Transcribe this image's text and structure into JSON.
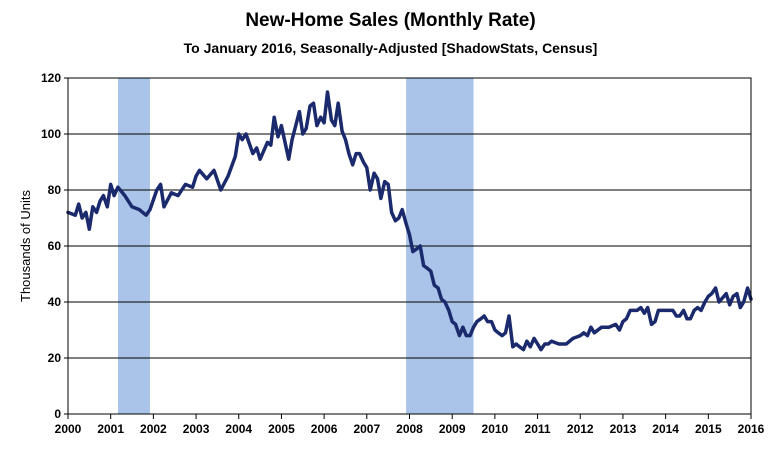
{
  "chart_data": {
    "type": "line",
    "title": "New-Home Sales (Monthly Rate)",
    "subtitle": "To January 2016, Seasonally-Adjusted [ShadowStats, Census]",
    "ylabel": "Thousands of Units",
    "xlabel": "",
    "ylim": [
      0,
      120
    ],
    "xlim": [
      2000,
      2016
    ],
    "yticks": [
      "0",
      "20",
      "40",
      "60",
      "80",
      "100",
      "120"
    ],
    "xticks": [
      "2000",
      "2001",
      "2002",
      "2003",
      "2004",
      "2005",
      "2006",
      "2007",
      "2008",
      "2009",
      "2010",
      "2011",
      "2012",
      "2013",
      "2014",
      "2015",
      "2016"
    ],
    "grid": true,
    "line_color": "#1a2a6c",
    "recession_color": "#a9c4e8",
    "recessions": [
      [
        2001.17,
        2001.92
      ],
      [
        2007.92,
        2009.5
      ]
    ],
    "series": [
      {
        "points": [
          [
            2000.0,
            72
          ],
          [
            2000.17,
            71
          ],
          [
            2000.25,
            75
          ],
          [
            2000.33,
            70
          ],
          [
            2000.42,
            72
          ],
          [
            2000.5,
            66
          ],
          [
            2000.58,
            74
          ],
          [
            2000.67,
            72
          ],
          [
            2000.75,
            76
          ],
          [
            2000.83,
            78
          ],
          [
            2000.92,
            74
          ],
          [
            2001.0,
            82
          ],
          [
            2001.08,
            78
          ],
          [
            2001.17,
            81
          ],
          [
            2001.33,
            78
          ],
          [
            2001.5,
            74
          ],
          [
            2001.67,
            73
          ],
          [
            2001.83,
            71
          ],
          [
            2001.92,
            73
          ],
          [
            2002.08,
            80
          ],
          [
            2002.17,
            82
          ],
          [
            2002.25,
            74
          ],
          [
            2002.42,
            79
          ],
          [
            2002.58,
            78
          ],
          [
            2002.75,
            82
          ],
          [
            2002.92,
            81
          ],
          [
            2003.0,
            85
          ],
          [
            2003.08,
            87
          ],
          [
            2003.25,
            84
          ],
          [
            2003.42,
            87
          ],
          [
            2003.58,
            80
          ],
          [
            2003.75,
            85
          ],
          [
            2003.92,
            92
          ],
          [
            2004.0,
            100
          ],
          [
            2004.08,
            98
          ],
          [
            2004.17,
            100
          ],
          [
            2004.33,
            93
          ],
          [
            2004.42,
            95
          ],
          [
            2004.5,
            91
          ],
          [
            2004.67,
            97
          ],
          [
            2004.75,
            96
          ],
          [
            2004.83,
            106
          ],
          [
            2004.92,
            99
          ],
          [
            2005.0,
            103
          ],
          [
            2005.17,
            91
          ],
          [
            2005.25,
            98
          ],
          [
            2005.42,
            108
          ],
          [
            2005.5,
            100
          ],
          [
            2005.58,
            102
          ],
          [
            2005.67,
            110
          ],
          [
            2005.75,
            111
          ],
          [
            2005.83,
            103
          ],
          [
            2005.92,
            106
          ],
          [
            2006.0,
            104
          ],
          [
            2006.08,
            115
          ],
          [
            2006.17,
            105
          ],
          [
            2006.25,
            103
          ],
          [
            2006.33,
            111
          ],
          [
            2006.42,
            101
          ],
          [
            2006.5,
            98
          ],
          [
            2006.58,
            93
          ],
          [
            2006.67,
            89
          ],
          [
            2006.75,
            93
          ],
          [
            2006.83,
            93
          ],
          [
            2006.92,
            90
          ],
          [
            2007.0,
            88
          ],
          [
            2007.08,
            80
          ],
          [
            2007.17,
            86
          ],
          [
            2007.25,
            84
          ],
          [
            2007.33,
            77
          ],
          [
            2007.42,
            83
          ],
          [
            2007.5,
            82
          ],
          [
            2007.58,
            72
          ],
          [
            2007.67,
            69
          ],
          [
            2007.75,
            70
          ],
          [
            2007.83,
            73
          ],
          [
            2007.92,
            68
          ],
          [
            2008.0,
            64
          ],
          [
            2008.08,
            58
          ],
          [
            2008.17,
            59
          ],
          [
            2008.25,
            60
          ],
          [
            2008.33,
            53
          ],
          [
            2008.42,
            52
          ],
          [
            2008.5,
            51
          ],
          [
            2008.58,
            46
          ],
          [
            2008.67,
            45
          ],
          [
            2008.75,
            41
          ],
          [
            2008.83,
            40
          ],
          [
            2008.92,
            37
          ],
          [
            2009.0,
            33
          ],
          [
            2009.08,
            32
          ],
          [
            2009.17,
            28
          ],
          [
            2009.25,
            31
          ],
          [
            2009.33,
            28
          ],
          [
            2009.42,
            28
          ],
          [
            2009.5,
            31
          ],
          [
            2009.58,
            33
          ],
          [
            2009.67,
            34
          ],
          [
            2009.75,
            35
          ],
          [
            2009.83,
            33
          ],
          [
            2009.92,
            33
          ],
          [
            2010.0,
            30
          ],
          [
            2010.08,
            29
          ],
          [
            2010.17,
            28
          ],
          [
            2010.25,
            29
          ],
          [
            2010.33,
            35
          ],
          [
            2010.42,
            24
          ],
          [
            2010.5,
            25
          ],
          [
            2010.58,
            24
          ],
          [
            2010.67,
            23
          ],
          [
            2010.75,
            26
          ],
          [
            2010.83,
            24
          ],
          [
            2010.92,
            27
          ],
          [
            2011.0,
            25
          ],
          [
            2011.08,
            23
          ],
          [
            2011.17,
            25
          ],
          [
            2011.25,
            25
          ],
          [
            2011.33,
            26
          ],
          [
            2011.5,
            25
          ],
          [
            2011.67,
            25
          ],
          [
            2011.83,
            27
          ],
          [
            2012.0,
            28
          ],
          [
            2012.08,
            29
          ],
          [
            2012.17,
            28
          ],
          [
            2012.25,
            31
          ],
          [
            2012.33,
            29
          ],
          [
            2012.5,
            31
          ],
          [
            2012.67,
            31
          ],
          [
            2012.83,
            32
          ],
          [
            2012.92,
            30
          ],
          [
            2013.0,
            33
          ],
          [
            2013.08,
            34
          ],
          [
            2013.17,
            37
          ],
          [
            2013.33,
            37
          ],
          [
            2013.42,
            38
          ],
          [
            2013.5,
            36
          ],
          [
            2013.58,
            38
          ],
          [
            2013.67,
            32
          ],
          [
            2013.75,
            33
          ],
          [
            2013.83,
            37
          ],
          [
            2014.0,
            37
          ],
          [
            2014.17,
            37
          ],
          [
            2014.25,
            35
          ],
          [
            2014.33,
            35
          ],
          [
            2014.42,
            37
          ],
          [
            2014.5,
            34
          ],
          [
            2014.58,
            34
          ],
          [
            2014.67,
            37
          ],
          [
            2014.75,
            38
          ],
          [
            2014.83,
            37
          ],
          [
            2014.92,
            40
          ],
          [
            2015.0,
            42
          ],
          [
            2015.08,
            43
          ],
          [
            2015.17,
            45
          ],
          [
            2015.25,
            40
          ],
          [
            2015.42,
            43
          ],
          [
            2015.5,
            39
          ],
          [
            2015.58,
            42
          ],
          [
            2015.67,
            43
          ],
          [
            2015.75,
            38
          ],
          [
            2015.83,
            40
          ],
          [
            2015.92,
            45
          ],
          [
            2016.0,
            41
          ]
        ]
      }
    ]
  }
}
